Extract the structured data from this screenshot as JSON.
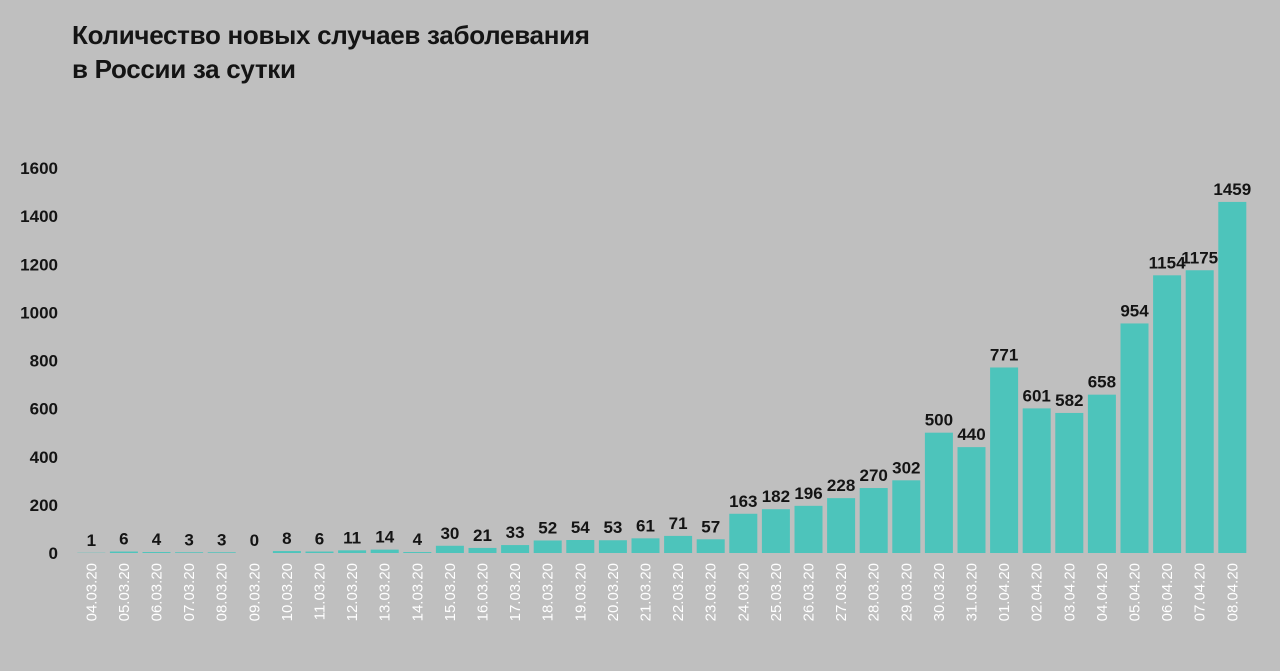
{
  "title_line1": "Количество новых случаев заболевания",
  "title_line2": "в России за сутки",
  "chart_data": {
    "type": "bar",
    "title": "Количество новых случаев заболевания в России за сутки",
    "xlabel": "",
    "ylabel": "",
    "ylim": [
      0,
      1600
    ],
    "yticks": [
      0,
      200,
      400,
      600,
      800,
      1000,
      1200,
      1400,
      1600
    ],
    "grid": false,
    "legend": "none",
    "bar_color": "#4dc4bb",
    "categories": [
      "04.03.20",
      "05.03.20",
      "06.03.20",
      "07.03.20",
      "08.03.20",
      "09.03.20",
      "10.03.20",
      "11.03.20",
      "12.03.20",
      "13.03.20",
      "14.03.20",
      "15.03.20",
      "16.03.20",
      "17.03.20",
      "18.03.20",
      "19.03.20",
      "20.03.20",
      "21.03.20",
      "22.03.20",
      "23.03.20",
      "24.03.20",
      "25.03.20",
      "26.03.20",
      "27.03.20",
      "28.03.20",
      "29.03.20",
      "30.03.20",
      "31.03.20",
      "01.04.20",
      "02.04.20",
      "03.04.20",
      "04.04.20",
      "05.04.20",
      "06.04.20",
      "07.04.20",
      "08.04.20"
    ],
    "values": [
      1,
      6,
      4,
      3,
      3,
      0,
      8,
      6,
      11,
      14,
      4,
      30,
      21,
      33,
      52,
      54,
      53,
      61,
      71,
      57,
      163,
      182,
      196,
      228,
      270,
      302,
      500,
      440,
      771,
      601,
      582,
      658,
      954,
      1154,
      1175,
      1459
    ]
  }
}
